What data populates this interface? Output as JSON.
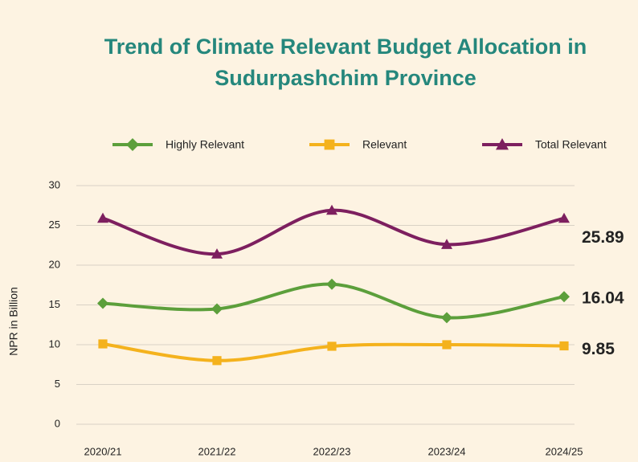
{
  "chart_data": {
    "type": "line",
    "title": [
      "Trend of Climate Relevant Budget Allocation in",
      "Sudurpashchim Province"
    ],
    "y_label": "NPR in Billion",
    "categories": [
      "2020/21",
      "2021/22",
      "2022/23",
      "2023/24",
      "2024/25"
    ],
    "series": [
      {
        "name": "Highly Relevant",
        "color": "#5c9f3b",
        "marker": "diamond",
        "values": [
          15.2,
          14.5,
          17.6,
          13.4,
          16.04
        ]
      },
      {
        "name": "Relevant",
        "color": "#f4b21d",
        "marker": "square",
        "values": [
          10.1,
          8.0,
          9.8,
          10.0,
          9.85
        ]
      },
      {
        "name": "Total Relevant",
        "color": "#7d1f5f",
        "marker": "triangle",
        "values": [
          25.9,
          21.4,
          26.9,
          22.6,
          25.89
        ]
      }
    ],
    "ylim": [
      0,
      30
    ],
    "yticks": [
      0,
      5,
      10,
      15,
      20,
      25,
      30
    ],
    "grid": true,
    "legend": "top"
  }
}
